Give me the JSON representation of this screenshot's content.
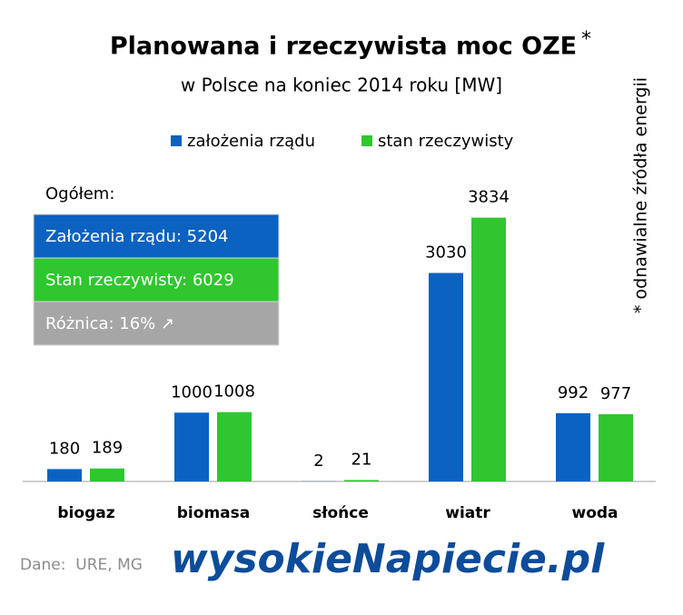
{
  "chart_data": {
    "type": "bar",
    "title": "Planowana i rzeczywista moc OZE",
    "title_mark": "*",
    "subtitle": "w Polsce na koniec 2014 roku [MW]",
    "note": "* odnawialne źródła energii",
    "categories": [
      "biogaz",
      "biomasa",
      "słońce",
      "wiatr",
      "woda"
    ],
    "series": [
      {
        "name": "założenia rządu",
        "color": "#0b62c0",
        "values": [
          180,
          1000,
          2,
          3030,
          992
        ]
      },
      {
        "name": "stan rzeczywisty",
        "color": "#2fc62f",
        "values": [
          189,
          1008,
          21,
          3834,
          977
        ]
      }
    ],
    "ylim": [
      0,
      4000
    ],
    "summary": {
      "heading": "Ogółem:",
      "rows": [
        {
          "text": "Założenia rządu: 5204",
          "color": "#0b62c0"
        },
        {
          "text": "Stan rzeczywisty: 6029",
          "color": "#2fc62f"
        },
        {
          "text": "Różnica: 16% ↗",
          "color": "#a6a6a6"
        }
      ]
    },
    "source": "Dane:  URE, MG",
    "logo": "wysokieNapiecie.pl"
  }
}
